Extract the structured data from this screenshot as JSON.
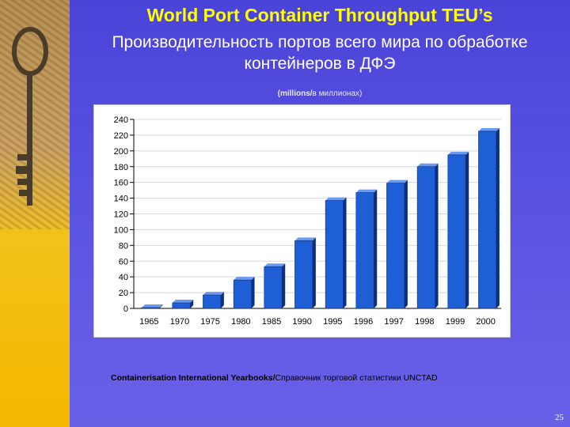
{
  "slide": {
    "title": "World Port Container Throughput TEU’s",
    "subtitle_line1": "Производительность портов всего мира по обработке",
    "subtitle_line2": "контейнеров в ДФЭ",
    "units_en": "(millions/",
    "units_ru": "в миллионах)",
    "source_en": "Containerisation International Yearbooks/",
    "source_ru": "Справочник торговой статистики UNCTAD",
    "page_number": "25",
    "decoration_icon": "old-key-icon"
  },
  "colors": {
    "background": "#5850e0",
    "title": "#ffff00",
    "bar_front": "#1f5fd6",
    "bar_side": "#0d2f80",
    "bar_top": "#6a9af0"
  },
  "chart_data": {
    "type": "bar",
    "title": "",
    "xlabel": "",
    "ylabel": "",
    "categories": [
      "1965",
      "1970",
      "1975",
      "1980",
      "1985",
      "1990",
      "1995",
      "1996",
      "1997",
      "1998",
      "1999",
      "2000"
    ],
    "values": [
      1,
      7,
      17,
      36,
      53,
      86,
      137,
      147,
      159,
      180,
      195,
      225
    ],
    "ylim": [
      0,
      240
    ],
    "yticks": [
      0,
      20,
      40,
      60,
      80,
      100,
      120,
      140,
      160,
      180,
      200,
      220,
      240
    ],
    "grid": true,
    "legend": "none"
  }
}
